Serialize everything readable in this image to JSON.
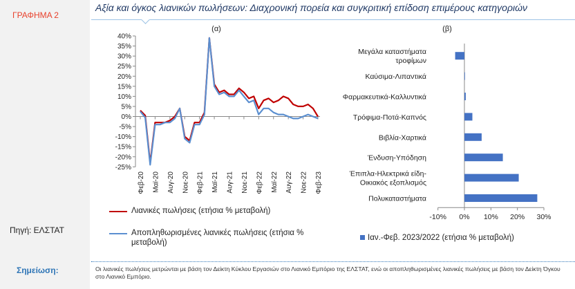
{
  "left": {
    "graph_label": "ΓΡΑΦΗΜΑ 2",
    "source": "Πηγή: ΕΛΣΤΑΤ",
    "note_label": "Σημείωση:"
  },
  "header": {
    "title": "Αξία και όγκος λιανικών πωλήσεων: Διαχρονική πορεία και συγκριτική επίδοση επιμέρους κατηγοριών"
  },
  "note": {
    "text": "Οι λιανικές πωλήσεις μετρώνται με βάση τον Δείκτη Κύκλου Εργασιών στο Λιανικό Εμπόριο της ΕΛΣΤΑΤ, ενώ οι αποπληθωρισμένες λιανικές πωλήσεις με βάση τον Δείκτη Όγκου στο Λιανικό Εμπόριο."
  },
  "chart_data": [
    {
      "type": "line",
      "panel_label": "(α)",
      "title": "",
      "ylim": [
        -25,
        40
      ],
      "y_ticks": [
        "40%",
        "35%",
        "30%",
        "25%",
        "20%",
        "15%",
        "10%",
        "5%",
        "0%",
        "-5%",
        "-10%",
        "-15%",
        "-20%",
        "-25%"
      ],
      "y_tick_values": [
        40,
        35,
        30,
        25,
        20,
        15,
        10,
        5,
        0,
        -5,
        -10,
        -15,
        -20,
        -25
      ],
      "x_ticks": [
        "Φεβ-20",
        "Μαϊ-20",
        "Αυγ-20",
        "Νοε-20",
        "Φεβ-21",
        "Μαϊ-21",
        "Αυγ-21",
        "Νοε-21",
        "Φεβ-22",
        "Μαϊ-22",
        "Αυγ-22",
        "Νοε-22",
        "Φεβ-23"
      ],
      "grid": false,
      "legend_position": "bottom",
      "x": [
        "Φεβ-20",
        "Μαρ-20",
        "Απρ-20",
        "Μαϊ-20",
        "Ιουν-20",
        "Ιουλ-20",
        "Αυγ-20",
        "Σεπ-20",
        "Οκτ-20",
        "Νοε-20",
        "Δεκ-20",
        "Ιαν-21",
        "Φεβ-21",
        "Μαρ-21",
        "Απρ-21",
        "Μαϊ-21",
        "Ιουν-21",
        "Ιουλ-21",
        "Αυγ-21",
        "Σεπ-21",
        "Οκτ-21",
        "Νοε-21",
        "Δεκ-21",
        "Ιαν-22",
        "Φεβ-22",
        "Μαρ-22",
        "Απρ-22",
        "Μαϊ-22",
        "Ιουν-22",
        "Ιουλ-22",
        "Αυγ-22",
        "Σεπ-22",
        "Οκτ-22",
        "Νοε-22",
        "Δεκ-22",
        "Ιαν-23",
        "Φεβ-23"
      ],
      "series": [
        {
          "name": "Λιανικές πωλήσεις (ετήσια % μεταβολή)",
          "color": "#c00000",
          "values": [
            3,
            0.5,
            -23,
            -3,
            -3,
            -3,
            -2,
            0,
            4,
            -10,
            -12,
            -3,
            -3,
            2,
            39,
            16,
            12,
            13,
            11,
            11,
            14,
            12,
            9,
            10,
            4,
            8,
            9,
            7,
            8,
            10,
            9,
            6,
            5,
            5,
            6,
            4,
            0
          ]
        },
        {
          "name": "Αποπληθωρισμένες λιανικές πωλήσεις (ετήσια % μεταβολή)",
          "color": "#5b8fd0",
          "values": [
            2.5,
            -0.5,
            -24,
            -4,
            -4,
            -3,
            -3,
            -1,
            4,
            -11,
            -13,
            -4,
            -4,
            1,
            39,
            15,
            11,
            12,
            10,
            10,
            13,
            10,
            7,
            8,
            1,
            4,
            4,
            2,
            1,
            1,
            0,
            -1,
            -1,
            0,
            1,
            0,
            -1
          ]
        }
      ]
    },
    {
      "type": "bar",
      "orientation": "horizontal",
      "panel_label": "(β)",
      "title": "",
      "categories": [
        "Μεγάλα καταστήματα τροφίμων",
        "Καύσιμα-Λιπαντικά",
        "Φαρμακευτικά-Καλλυντικά",
        "Τρόφιμα-Ποτά-Καπνός",
        "Βιβλία-Χαρτικά",
        "Ένδυση-Υπόδηση",
        "Έπιπλα-Ηλεκτρικά είδη-Οικιακός εξοπλισμός",
        "Πολυκαταστήματα"
      ],
      "category_lines": [
        [
          "Μεγάλα καταστήματα",
          "τροφίμων"
        ],
        [
          "Καύσιμα-Λιπαντικά"
        ],
        [
          "Φαρμακευτικά-Καλλυντικά"
        ],
        [
          "Τρόφιμα-Ποτά-Καπνός"
        ],
        [
          "Βιβλία-Χαρτικά"
        ],
        [
          "Ένδυση-Υπόδηση"
        ],
        [
          "Έπιπλα-Ηλεκτρικά είδη-",
          "Οικιακός εξοπλισμός"
        ],
        [
          "Πολυκαταστήματα"
        ]
      ],
      "values": [
        -3.5,
        0,
        0.5,
        3,
        6.5,
        14.5,
        20.5,
        27.5
      ],
      "xlim": [
        -10,
        30
      ],
      "x_ticks": [
        "-10%",
        "0%",
        "10%",
        "20%",
        "30%"
      ],
      "x_tick_values": [
        -10,
        0,
        10,
        20,
        30
      ],
      "legend_position": "bottom",
      "series_name": "Ιαν.-Φεβ. 2023/2022 (ετήσια % μεταβολή)",
      "color": "#4472c4"
    }
  ]
}
